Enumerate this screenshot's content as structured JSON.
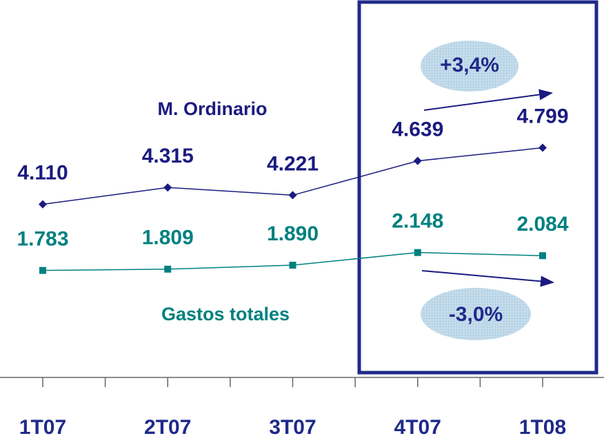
{
  "chart_data": {
    "type": "line",
    "categories": [
      "1T07",
      "2T07",
      "3T07",
      "4T07",
      "1T08"
    ],
    "series": [
      {
        "name": "M. Ordinario",
        "color": "#1a1a80",
        "values": [
          4110,
          4315,
          4221,
          4639,
          4799
        ],
        "value_labels": [
          "4.110",
          "4.315",
          "4.221",
          "4.639",
          "4.799"
        ]
      },
      {
        "name": "Gastos totales",
        "color": "#008080",
        "axis": "y2",
        "values": [
          1783,
          1809,
          1890,
          2148,
          2084
        ],
        "value_labels": [
          "1.783",
          "1.809",
          "1.890",
          "2.148",
          "2.084"
        ]
      }
    ],
    "ylim": [
      2000,
      6600
    ],
    "y2lim": [
      -400,
      7300
    ],
    "annotations": [
      "+3,4%",
      "-3,0%"
    ]
  }
}
